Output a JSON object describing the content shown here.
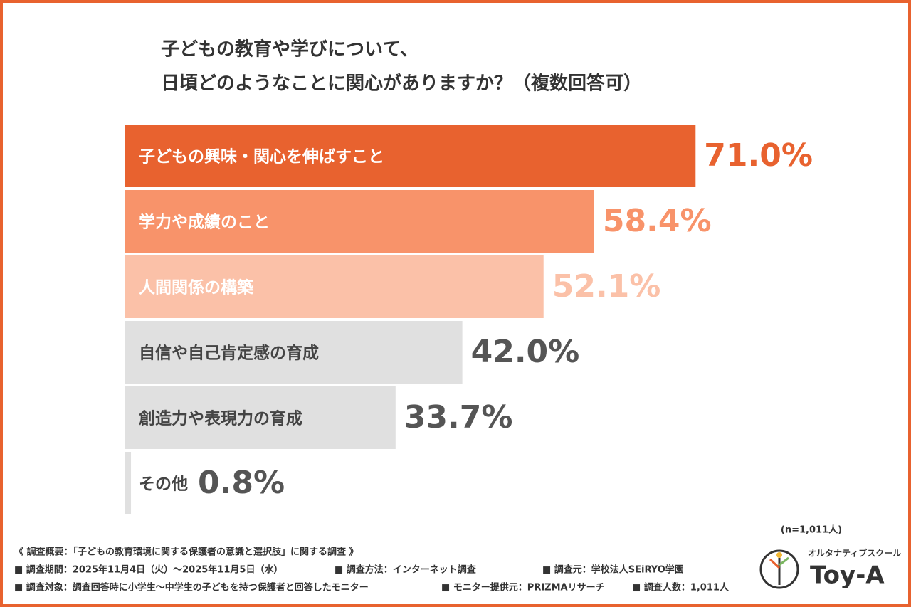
{
  "chart_data": {
    "type": "bar",
    "title_lines": [
      "子どもの教育や学びについて、",
      "日頃どのようなことに関心がありますか？（複数回答可）"
    ],
    "categories": [
      "子どもの興味・関心を伸ばすこと",
      "学力や成績のこと",
      "人間関係の構築",
      "自信や自己肯定感の育成",
      "創造力や表現力の育成",
      "その他"
    ],
    "values": [
      71.0,
      58.4,
      52.1,
      42.0,
      33.7,
      0.8
    ],
    "value_labels": [
      "71.0%",
      "58.4%",
      "52.1%",
      "42.0%",
      "33.7%",
      "0.8%"
    ],
    "colors": [
      "#e8622f",
      "#f8936a",
      "#fbc1a8",
      "#e0e0e0",
      "#e0e0e0",
      "#e0e0e0"
    ],
    "label_colors": [
      "#ffffff",
      "#ffffff",
      "#ffffff",
      "#444444",
      "#444444",
      "#444444"
    ],
    "value_label_colors": [
      "#e8622f",
      "#f8936a",
      "#fbc1a8",
      "#555555",
      "#555555",
      "#555555"
    ],
    "sample_size": "(n=1,011人)",
    "footnotes": [
      [
        "《 調査概要：「子どもの教育環境に関する保護者の意識と選択肢」に関する調査 》"
      ],
      [
        "■ 調査期間：2025年11月4日（火）〜2025年11月5日（水）",
        "■ 調査方法：インターネット調査",
        "■ 調査元：学校法人SEiRYO学園"
      ],
      [
        "■ 調査対象：調査回答時に小学生〜中学生の子どもを持つ保護者と回答したモニター",
        "■ モニター提供元：PRIZMAリサーチ",
        "■ 調査人数：1,011人"
      ]
    ],
    "brand_tagline": "オルタナティブスクール",
    "brand_name": "Toy-A"
  }
}
